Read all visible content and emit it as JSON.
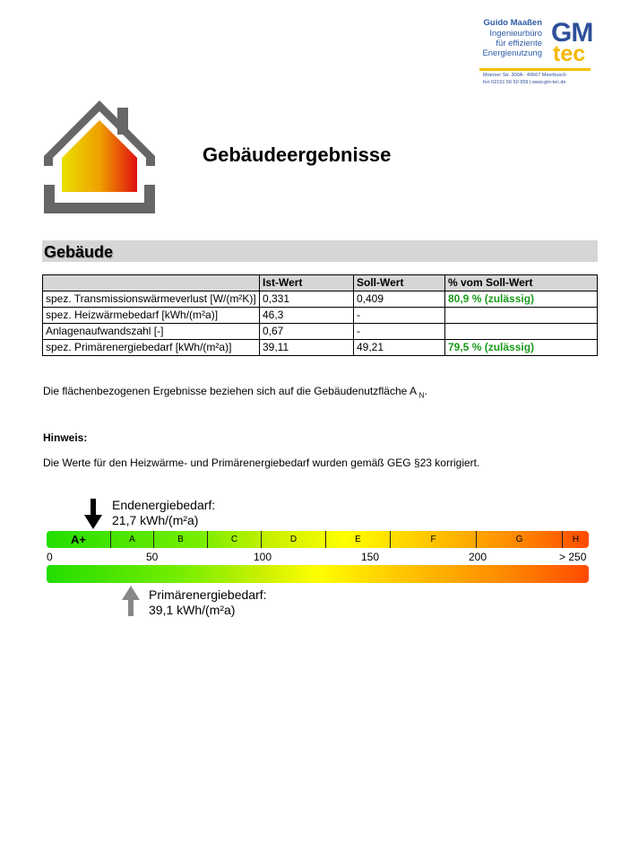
{
  "logo": {
    "name": "Guido Maaßen",
    "line2": "Ingenieurbüro",
    "line3": "für effiziente",
    "line4": "Energienutzung",
    "brand_gm": "GM",
    "brand_tec": "tec",
    "address": "Moerser Str. 300A · 40667 Meerbusch",
    "contact": "fon 02151 56 50 959 | www.gm-tec.de"
  },
  "title": "Gebäudeergebnisse",
  "section": "Gebäude",
  "table": {
    "headers": [
      "",
      "Ist-Wert",
      "Soll-Wert",
      "% vom Soll-Wert"
    ],
    "rows": [
      [
        "spez. Transmissionswärmeverlust [W/(m²K)]",
        "0,331",
        "0,409",
        "80,9 % (zulässig)"
      ],
      [
        "spez. Heizwärmebedarf [kWh/(m²a)]",
        "46,3",
        "-",
        ""
      ],
      [
        "Anlagenaufwandszahl [-]",
        "0,67",
        "-",
        ""
      ],
      [
        "spez. Primärenergiebedarf [kWh/(m²a)]",
        "39,11",
        "49,21",
        "79,5 % (zulässig)"
      ]
    ]
  },
  "note_area": "Die flächenbezogenen Ergebnisse beziehen sich auf die Gebäudenutzfläche A",
  "note_area_sub": "N",
  "hint_title": "Hinweis:",
  "hint_text": "Die Werte für den Heizwärme- und Primärenergiebedarf wurden gemäß GEG §23 korrigiert.",
  "scale": {
    "classes": [
      {
        "label": "A+",
        "max": 30
      },
      {
        "label": "A",
        "max": 50
      },
      {
        "label": "B",
        "max": 75
      },
      {
        "label": "C",
        "max": 100
      },
      {
        "label": "D",
        "max": 130
      },
      {
        "label": "E",
        "max": 160
      },
      {
        "label": "F",
        "max": 200
      },
      {
        "label": "G",
        "max": 240
      },
      {
        "label": "H",
        "max": 250
      }
    ],
    "ticks": [
      "0",
      "50",
      "100",
      "150",
      "200",
      "> 250"
    ],
    "end_energy": {
      "label": "Endenergiebedarf:",
      "value_text": "21,7 kWh/(m²a)",
      "value": 21.7,
      "color": "#000000"
    },
    "primary_energy": {
      "label": "Primärenergiebedarf:",
      "value_text": "39,1 kWh/(m²a)",
      "value": 39.1,
      "color": "#888888"
    }
  }
}
